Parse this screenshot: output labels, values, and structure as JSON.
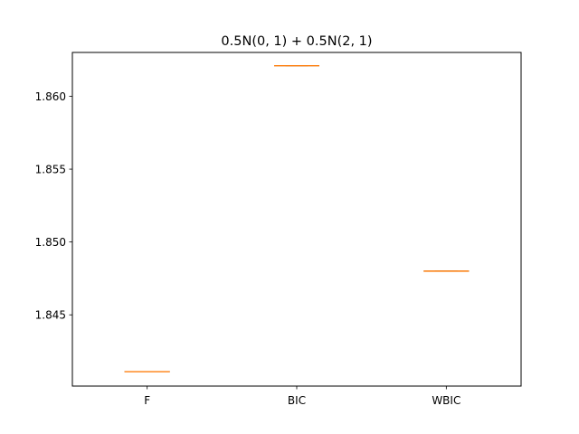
{
  "chart_data": {
    "type": "box",
    "title": "0.5N(0, 1) + 0.5N(2, 1)",
    "xlabel": "",
    "ylabel": "",
    "categories": [
      "F",
      "BIC",
      "WBIC"
    ],
    "values": [
      1.8411,
      1.8621,
      1.848
    ],
    "ylim": [
      1.84011,
      1.86301
    ],
    "yticks": [
      1.845,
      1.85,
      1.855,
      1.86
    ],
    "ytick_labels": [
      "1.845",
      "1.850",
      "1.855",
      "1.860"
    ],
    "grid": false,
    "colors": {
      "median": "#ff7f0e",
      "box": "#000000",
      "axes": "#000000"
    }
  }
}
